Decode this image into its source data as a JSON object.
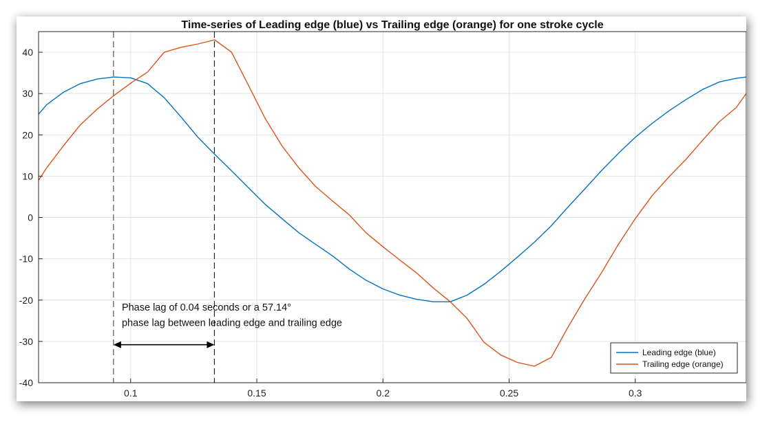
{
  "chart_data": {
    "type": "line",
    "title": "Time-series of Leading edge (blue) vs Trailing edge (orange) for one stroke cycle",
    "xlabel": "",
    "ylabel": "",
    "xlim": [
      0.0635,
      0.344
    ],
    "ylim": [
      -40,
      45
    ],
    "xticks": [
      0.1,
      0.15,
      0.2,
      0.25,
      0.3
    ],
    "xtick_labels": [
      "0.1",
      "0.15",
      "0.2",
      "0.25",
      "0.3"
    ],
    "yticks": [
      -40,
      -30,
      -20,
      -10,
      0,
      10,
      20,
      30,
      40
    ],
    "ytick_labels": [
      "-40",
      "-30",
      "-20",
      "-10",
      "0",
      "10",
      "20",
      "30",
      "40"
    ],
    "grid": true,
    "legend_position": "bottom-right",
    "series": [
      {
        "name": "Leading edge (blue)",
        "color": "#0072BD",
        "x": [
          0.0635,
          0.0667,
          0.0733,
          0.08,
          0.0867,
          0.0933,
          0.1,
          0.1067,
          0.1133,
          0.12,
          0.1267,
          0.1333,
          0.14,
          0.1467,
          0.1533,
          0.16,
          0.1667,
          0.1733,
          0.18,
          0.1867,
          0.1933,
          0.2,
          0.2067,
          0.2133,
          0.22,
          0.2267,
          0.2333,
          0.24,
          0.2467,
          0.2533,
          0.26,
          0.2667,
          0.2733,
          0.28,
          0.2867,
          0.2933,
          0.3,
          0.3067,
          0.3133,
          0.32,
          0.3267,
          0.3333,
          0.34,
          0.344
        ],
        "y": [
          25,
          27.3,
          30.3,
          32.4,
          33.5,
          34,
          33.8,
          32.4,
          29,
          24.3,
          19.4,
          15.3,
          11.3,
          7.2,
          3.2,
          -0.3,
          -3.7,
          -6.5,
          -9.3,
          -12.5,
          -15.2,
          -17.3,
          -18.8,
          -19.8,
          -20.4,
          -20.4,
          -18.8,
          -16.2,
          -13,
          -9.6,
          -6,
          -2,
          2.5,
          6.9,
          11.4,
          15.5,
          19.4,
          22.8,
          25.8,
          28.5,
          31,
          32.8,
          33.7,
          34
        ]
      },
      {
        "name": "Trailing edge (orange)",
        "color": "#D95319",
        "x": [
          0.0635,
          0.0667,
          0.0733,
          0.08,
          0.0867,
          0.0933,
          0.1,
          0.1067,
          0.1133,
          0.12,
          0.1267,
          0.1333,
          0.14,
          0.1467,
          0.1533,
          0.16,
          0.1667,
          0.1733,
          0.18,
          0.1867,
          0.1933,
          0.2,
          0.2067,
          0.2133,
          0.22,
          0.2267,
          0.2333,
          0.24,
          0.2467,
          0.2533,
          0.26,
          0.2667,
          0.2733,
          0.28,
          0.2867,
          0.2933,
          0.3,
          0.3067,
          0.3133,
          0.32,
          0.3267,
          0.3333,
          0.34,
          0.344
        ],
        "y": [
          9,
          12,
          17.3,
          22.4,
          26.2,
          29.5,
          32.5,
          35.2,
          40,
          41.2,
          42,
          43,
          40,
          32,
          24,
          17.3,
          12,
          7.5,
          4,
          0.6,
          -3.7,
          -7.1,
          -10.3,
          -13.4,
          -17.1,
          -20.4,
          -24.4,
          -30.2,
          -33.3,
          -35.1,
          -36,
          -33.9,
          -26.6,
          -19.7,
          -13.3,
          -6.5,
          -0.3,
          5.3,
          9.8,
          14,
          18.7,
          23.2,
          26.6,
          30
        ]
      }
    ],
    "vlines": [
      {
        "x": 0.0932,
        "style": "dashed",
        "color": "#555555"
      },
      {
        "x": 0.1332,
        "style": "dashed",
        "color": "#222222"
      }
    ],
    "annotation": {
      "line1": "Phase lag of 0.04 seconds or a 57.14°",
      "line2": "phase lag between leading edge and trailing edge",
      "text_x": 0.0965,
      "line1_y": -22.5,
      "line2_y": -26.3,
      "arrow_x": [
        0.0932,
        0.1332
      ],
      "arrow_y": -30.8
    }
  }
}
